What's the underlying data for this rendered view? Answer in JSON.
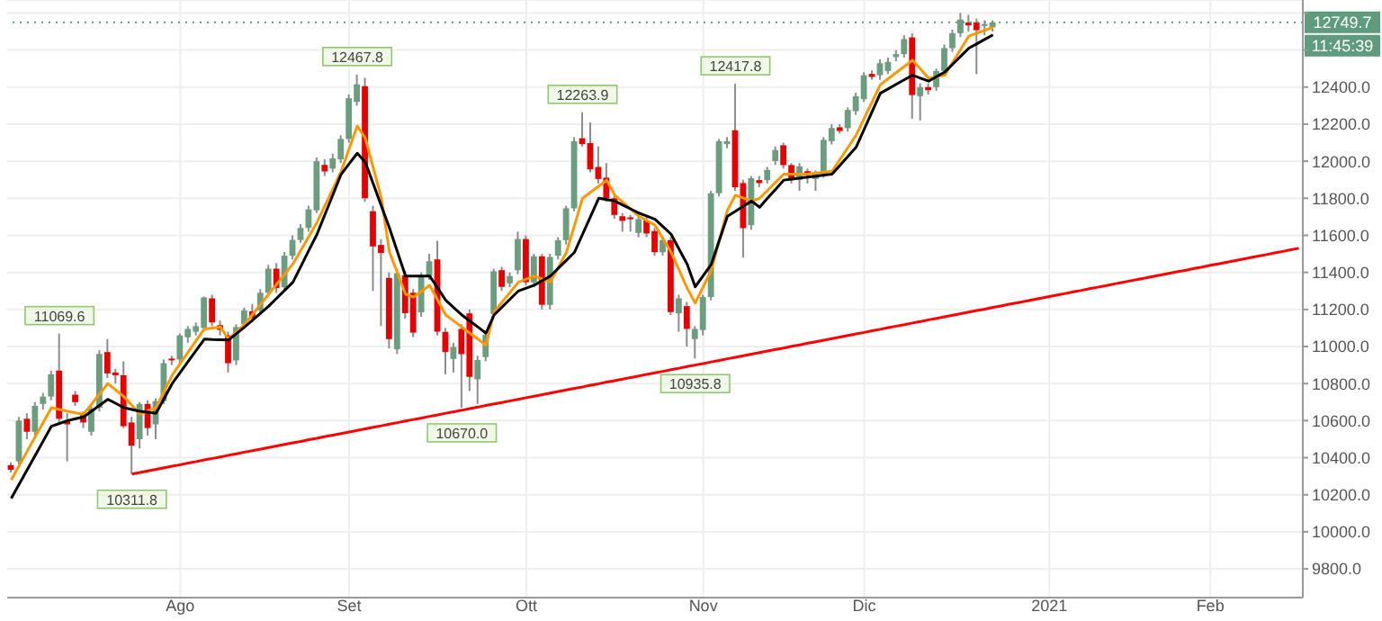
{
  "chart_data": {
    "type": "candlestick",
    "categories": [
      null,
      null,
      null,
      null,
      null,
      null,
      null,
      null,
      null,
      null,
      null,
      null,
      null,
      null,
      null,
      null,
      null,
      null,
      null,
      null,
      null,
      "Ago",
      null,
      null,
      null,
      null,
      null,
      null,
      null,
      null,
      null,
      null,
      null,
      null,
      null,
      null,
      null,
      null,
      null,
      null,
      null,
      null,
      "Set",
      null,
      null,
      null,
      null,
      null,
      null,
      null,
      null,
      null,
      null,
      null,
      null,
      null,
      null,
      null,
      null,
      null,
      null,
      null,
      null,
      null,
      "Ott",
      null,
      null,
      null,
      null,
      null,
      null,
      null,
      null,
      null,
      null,
      null,
      null,
      null,
      null,
      null,
      null,
      null,
      null,
      null,
      null,
      null,
      "Nov",
      null,
      null,
      null,
      null,
      null,
      null,
      null,
      null,
      null,
      null,
      null,
      null,
      null,
      null,
      null,
      null,
      null,
      null,
      null,
      "Dic",
      null,
      null,
      null,
      null,
      null,
      null,
      null,
      null,
      null,
      null,
      null,
      null,
      null,
      null,
      null,
      null,
      null,
      null,
      null,
      null,
      null,
      null,
      "2021",
      null,
      null,
      null,
      null,
      null,
      null,
      null,
      null,
      null,
      null,
      null,
      null,
      null,
      null,
      null,
      null,
      null,
      null,
      null,
      "Feb",
      null,
      null,
      null,
      null,
      null,
      null,
      null,
      null,
      null,
      null,
      null
    ],
    "ylim": [
      9645,
      12870
    ],
    "yticks": [
      {
        "value": 9800,
        "label": "9800.0"
      },
      {
        "value": 10000,
        "label": "10000.0"
      },
      {
        "value": 10200,
        "label": "10200.0"
      },
      {
        "value": 10400,
        "label": "10400.0"
      },
      {
        "value": 10600,
        "label": "10600.0"
      },
      {
        "value": 10800,
        "label": "10800.0"
      },
      {
        "value": 11000,
        "label": "11000.0"
      },
      {
        "value": 11200,
        "label": "11200.0"
      },
      {
        "value": 11400,
        "label": "11400.0"
      },
      {
        "value": 11600,
        "label": "11600.0"
      },
      {
        "value": 11800,
        "label": "11800.0"
      },
      {
        "value": 12000,
        "label": "12000.0"
      },
      {
        "value": 12200,
        "label": "12200.0"
      },
      {
        "value": 12400,
        "label": "12400.0"
      },
      {
        "value": 12600,
        "label": null
      },
      {
        "value": 12800,
        "label": null
      }
    ],
    "grid": true,
    "series": [
      {
        "type": "line",
        "color": "#ff9800",
        "values": [
          10280,
          10358,
          10436,
          10514,
          10592,
          10670,
          10660,
          10650,
          10642,
          10635,
          10690,
          10745,
          10800,
          10765,
          10730,
          10683,
          10635,
          10653,
          10670,
          10758,
          10845,
          10908,
          10970,
          11033,
          11095,
          11100,
          11105,
          11040,
          11080,
          11120,
          11174,
          11229,
          11283,
          11337,
          11391,
          11445,
          11520,
          11595,
          11670,
          11762,
          11853,
          11945,
          12068,
          12190,
          12125,
          11963,
          11800,
          11510,
          11397,
          11283,
          11267,
          11299,
          11330,
          11250,
          11170,
          11138,
          11105,
          11072,
          11040,
          11007,
          11186,
          11240,
          11293,
          11347,
          11364,
          11380,
          11364,
          11347,
          11428,
          11509,
          11655,
          11800,
          11833,
          11865,
          11898,
          11817,
          11779,
          11741,
          11703,
          11679,
          11655,
          11582,
          11509,
          11412,
          11315,
          11234,
          11323,
          11412,
          11574,
          11736,
          11817,
          11801,
          11785,
          11800,
          11843,
          11887,
          11930,
          11930,
          11930,
          11930,
          11935,
          11941,
          11946,
          12011,
          12076,
          12141,
          12232,
          12322,
          12413,
          12446,
          12479,
          12512,
          12545,
          12497,
          12448,
          12456,
          12464,
          12534,
          12605,
          12675,
          12691,
          12707,
          12723,
          null,
          null,
          null,
          null,
          null,
          null,
          null,
          null,
          null,
          null,
          null,
          null,
          null,
          null,
          null,
          null,
          null,
          null,
          null,
          null,
          null,
          null,
          null,
          null,
          null,
          null,
          null,
          null,
          null,
          null,
          null,
          null,
          null,
          null,
          null,
          null,
          null,
          null
        ]
      },
      {
        "type": "line",
        "color": "#000000",
        "values": [
          10180,
          10258,
          10336,
          10414,
          10492,
          10570,
          10585,
          10600,
          10610,
          10620,
          10652,
          10683,
          10715,
          10693,
          10670,
          10660,
          10650,
          10645,
          10640,
          10720,
          10800,
          10860,
          10920,
          10980,
          11040,
          11038,
          11037,
          11035,
          11070,
          11105,
          11143,
          11180,
          11218,
          11261,
          11304,
          11347,
          11433,
          11520,
          11606,
          11714,
          11822,
          11930,
          11987,
          12043,
          11995,
          11877,
          11758,
          11640,
          11510,
          11380,
          11380,
          11380,
          11380,
          11315,
          11250,
          11210,
          11170,
          11137,
          11105,
          11072,
          11170,
          11213,
          11256,
          11299,
          11315,
          11331,
          11356,
          11380,
          11423,
          11466,
          11509,
          11606,
          11703,
          11800,
          11793,
          11785,
          11763,
          11742,
          11720,
          11704,
          11687,
          11647,
          11606,
          11525,
          11444,
          11322,
          11383,
          11444,
          11574,
          11703,
          11730,
          11758,
          11785,
          11752,
          11801,
          11849,
          11898,
          11903,
          11909,
          11914,
          11919,
          11925,
          11930,
          11979,
          12027,
          12076,
          12173,
          12270,
          12367,
          12391,
          12416,
          12440,
          12464,
          12448,
          12432,
          12457,
          12481,
          12524,
          12567,
          12610,
          12634,
          12658,
          12682,
          null,
          null,
          null,
          null,
          null,
          null,
          null,
          null,
          null,
          null,
          null,
          null,
          null,
          null,
          null,
          null,
          null,
          null,
          null,
          null,
          null,
          null,
          null,
          null,
          null,
          null,
          null,
          null,
          null,
          null,
          null,
          null,
          null,
          null,
          null,
          null,
          null,
          null
        ]
      },
      {
        "type": "line",
        "color": "#ff0000",
        "values": [
          null,
          null,
          null,
          null,
          null,
          null,
          null,
          null,
          null,
          null,
          null,
          null,
          null,
          null,
          null,
          10312,
          10320,
          10329,
          10337,
          10346,
          10354,
          10362,
          10371,
          10379,
          10388,
          10396,
          10404,
          10413,
          10421,
          10430,
          10438,
          10446,
          10455,
          10463,
          10472,
          10480,
          10488,
          10497,
          10505,
          10514,
          10522,
          10530,
          10539,
          10547,
          10556,
          10564,
          10572,
          10581,
          10589,
          10598,
          10606,
          10614,
          10623,
          10631,
          10640,
          10648,
          10656,
          10665,
          10673,
          10682,
          10690,
          10698,
          10707,
          10715,
          10724,
          10732,
          10740,
          10749,
          10757,
          10766,
          10774,
          10782,
          10791,
          10799,
          10808,
          10816,
          10824,
          10833,
          10841,
          10850,
          10858,
          10866,
          10875,
          10883,
          10892,
          10900,
          10908,
          10917,
          10925,
          10934,
          10942,
          10950,
          10959,
          10967,
          10976,
          10984,
          10992,
          11001,
          11009,
          11018,
          11026,
          11034,
          11043,
          11051,
          11060,
          11068,
          11076,
          11085,
          11093,
          11102,
          11110,
          11118,
          11127,
          11135,
          11144,
          11152,
          11160,
          11169,
          11177,
          11186,
          11194,
          11202,
          11211,
          11219,
          11228,
          11236,
          11244,
          11253,
          11261,
          11270,
          11278,
          11286,
          11295,
          11303,
          11312,
          11320,
          11328,
          11337,
          11345,
          11354,
          11362,
          11370,
          11379,
          11387,
          11396,
          11404,
          11412,
          11421,
          11429,
          11438,
          11446,
          11454,
          11463,
          11471,
          11480,
          11488,
          11496,
          11505,
          11513,
          11522,
          11530
        ]
      },
      {
        "type": "candlestick",
        "color": "#6b9e80",
        "ohlc": [
          null,
          [
            10380,
            10620,
            10360,
            10600
          ],
          null,
          [
            10540,
            10700,
            10520,
            10680
          ],
          [
            10690,
            10750,
            10660,
            10730
          ],
          [
            10730,
            10870,
            10710,
            10850
          ],
          null,
          null,
          null,
          null,
          [
            10540,
            10680,
            10520,
            10665
          ],
          [
            10670,
            10980,
            10650,
            10960
          ],
          null,
          null,
          null,
          null,
          [
            10500,
            10700,
            10450,
            10690
          ],
          null,
          [
            10580,
            10720,
            10500,
            10705
          ],
          [
            10705,
            10930,
            10690,
            10910
          ],
          null,
          [
            10930,
            11070,
            10910,
            11060
          ],
          [
            11050,
            11110,
            11020,
            11095
          ],
          [
            11080,
            11130,
            11060,
            11110
          ],
          [
            11100,
            11270,
            11080,
            11265
          ],
          null,
          null,
          null,
          [
            10925,
            11120,
            10900,
            11105
          ],
          [
            11120,
            11210,
            11100,
            11195
          ],
          null,
          [
            11195,
            11310,
            11170,
            11290
          ],
          [
            11290,
            11440,
            11270,
            11420
          ],
          null,
          [
            11320,
            11510,
            11300,
            11490
          ],
          [
            11490,
            11600,
            11470,
            11575
          ],
          [
            11575,
            11660,
            11560,
            11640
          ],
          [
            11640,
            11760,
            11620,
            11740
          ],
          [
            11735,
            12020,
            11720,
            12000
          ],
          null,
          [
            11960,
            12040,
            11940,
            12015
          ],
          [
            12010,
            12140,
            11990,
            12120
          ],
          [
            12120,
            12360,
            12100,
            12340
          ],
          [
            12320,
            12467.8,
            12300,
            12415
          ],
          null,
          null,
          null,
          null,
          [
            10985,
            11420,
            10960,
            11395
          ],
          null,
          null,
          [
            11185,
            11400,
            11160,
            11380
          ],
          [
            11380,
            11500,
            11360,
            11460
          ],
          null,
          null,
          [
            10933,
            11020,
            10860,
            10998
          ],
          null,
          null,
          [
            10823,
            10950,
            10690,
            10927
          ],
          [
            10943,
            11080,
            10920,
            11063
          ],
          [
            11176,
            11420,
            11160,
            11406
          ],
          null,
          [
            11341,
            11400,
            11320,
            11380
          ],
          [
            11412,
            11620,
            11390,
            11580
          ],
          null,
          [
            11347,
            11500,
            11320,
            11487
          ],
          null,
          [
            11225,
            11500,
            11200,
            11483
          ],
          [
            11490,
            11590,
            11470,
            11574
          ],
          [
            11574,
            11760,
            11550,
            11746
          ],
          [
            11746,
            12130,
            11730,
            12108
          ],
          null,
          null,
          null,
          null,
          null,
          null,
          null,
          [
            11613,
            11700,
            11590,
            11687
          ],
          null,
          null,
          [
            11509,
            11590,
            11490,
            11574
          ],
          null,
          [
            11179,
            11280,
            11080,
            11260
          ],
          null,
          [
            11040,
            11110,
            10935.8,
            11095
          ],
          [
            11089,
            11280,
            11060,
            11267
          ],
          [
            11267,
            11840,
            11250,
            11827
          ],
          [
            11827,
            12120,
            11810,
            12108
          ],
          [
            12092,
            12130,
            12070,
            12108
          ],
          null,
          null,
          [
            11655,
            11920,
            11630,
            11908
          ],
          null,
          [
            11898,
            11970,
            11880,
            11953
          ],
          [
            12001,
            12080,
            11980,
            12060
          ],
          null,
          null,
          [
            11898,
            11990,
            11840,
            11972
          ],
          null,
          [
            11904,
            11950,
            11840,
            11937
          ],
          [
            11930,
            12130,
            11910,
            12115
          ],
          [
            12108,
            12200,
            12090,
            12179
          ],
          null,
          [
            12179,
            12290,
            12160,
            12277
          ],
          [
            12270,
            12370,
            12250,
            12351
          ],
          [
            12335,
            12480,
            12320,
            12464
          ],
          null,
          [
            12464,
            12550,
            12440,
            12529
          ],
          [
            12487,
            12560,
            12470,
            12536
          ],
          [
            12562,
            12600,
            12540,
            12578
          ],
          [
            12578,
            12680,
            12560,
            12659
          ],
          null,
          [
            12351,
            12420,
            12220,
            12400
          ],
          null,
          [
            12400,
            12500,
            12380,
            12487
          ],
          [
            12487,
            12630,
            12470,
            12610
          ],
          [
            12610,
            12710,
            12590,
            12691
          ],
          [
            12691,
            12800,
            12670,
            12765
          ],
          null,
          null,
          [
            12730,
            12760,
            12680,
            12740
          ],
          [
            12723,
            12760,
            12700,
            12749.7
          ],
          null,
          null,
          null,
          null,
          null,
          null,
          null,
          null,
          null,
          null,
          null,
          null,
          null,
          null,
          null,
          null,
          null,
          null,
          null,
          null,
          null,
          null,
          null,
          null,
          null,
          null,
          null,
          null,
          null,
          null,
          null,
          null,
          null,
          null,
          null,
          null,
          null,
          null
        ]
      },
      {
        "type": "candlestick",
        "color": "#e60000",
        "ohlc": [
          [
            10360,
            10375,
            10320,
            10335
          ],
          null,
          [
            10610,
            10640,
            10500,
            10540
          ],
          null,
          null,
          null,
          [
            10870,
            11069.6,
            10590,
            10610
          ],
          [
            10600,
            10640,
            10380,
            10580
          ],
          [
            10740,
            10760,
            10680,
            10700
          ],
          [
            10630,
            10650,
            10560,
            10590
          ],
          null,
          null,
          [
            10970,
            11040,
            10830,
            10855
          ],
          [
            10860,
            10880,
            10800,
            10845
          ],
          [
            10845,
            10920,
            10560,
            10570
          ],
          [
            10590,
            10620,
            10311.8,
            10465
          ],
          null,
          [
            10690,
            10710,
            10520,
            10560
          ],
          null,
          null,
          [
            10935,
            10950,
            10900,
            10925
          ],
          null,
          null,
          null,
          null,
          [
            11260,
            11280,
            11110,
            11130
          ],
          [
            11115,
            11140,
            11060,
            11090
          ],
          [
            11060,
            11080,
            10860,
            10910
          ],
          null,
          null,
          [
            11190,
            11230,
            11130,
            11155
          ],
          null,
          null,
          [
            11420,
            11450,
            11290,
            11315
          ],
          null,
          null,
          null,
          null,
          null,
          [
            11980,
            12010,
            11920,
            11945
          ],
          null,
          null,
          null,
          null,
          [
            12405,
            12450,
            11780,
            11800
          ],
          [
            11730,
            11760,
            11300,
            11540
          ],
          [
            11548,
            11580,
            11110,
            11505
          ],
          [
            11370,
            11400,
            10990,
            11040
          ],
          null,
          [
            11385,
            11410,
            11150,
            11180
          ],
          [
            11290,
            11310,
            11050,
            11075
          ],
          null,
          null,
          [
            11470,
            11570,
            11060,
            11080
          ],
          [
            11079,
            11100,
            10850,
            10970
          ],
          null,
          [
            11095,
            11120,
            10670,
            10959
          ],
          [
            11179,
            11200,
            10760,
            10836
          ],
          null,
          null,
          null,
          [
            11412,
            11430,
            11300,
            11322
          ],
          null,
          null,
          [
            11580,
            11600,
            11330,
            11347
          ],
          null,
          [
            11487,
            11500,
            11200,
            11225
          ],
          null,
          null,
          null,
          null,
          [
            12124,
            12263.9,
            12080,
            12092
          ],
          [
            12098,
            12210,
            11940,
            11956
          ],
          [
            11969,
            12080,
            11880,
            11904
          ],
          [
            11911,
            11990,
            11780,
            11800
          ],
          [
            11800,
            11830,
            11690,
            11710
          ],
          [
            11703,
            11720,
            11620,
            11678
          ],
          [
            11697,
            11710,
            11620,
            11687
          ],
          null,
          [
            11680,
            11700,
            11590,
            11610
          ],
          [
            11623,
            11640,
            11490,
            11509
          ],
          null,
          [
            11574,
            11590,
            11170,
            11186
          ],
          null,
          [
            11218,
            11240,
            11000,
            11095
          ],
          null,
          null,
          null,
          null,
          null,
          [
            12167,
            12417.8,
            11840,
            11859
          ],
          [
            11882,
            11900,
            11480,
            11639
          ],
          null,
          [
            11898,
            11920,
            11860,
            11882
          ],
          null,
          null,
          [
            12086,
            12100,
            11960,
            11979
          ],
          [
            11979,
            11990,
            11880,
            11898
          ],
          null,
          [
            11946,
            11960,
            11880,
            11930
          ],
          null,
          null,
          null,
          [
            12183,
            12200,
            12150,
            12163
          ],
          null,
          null,
          null,
          [
            12471,
            12490,
            12440,
            12455
          ],
          null,
          null,
          null,
          null,
          [
            12668,
            12690,
            12230,
            12357
          ],
          null,
          [
            12400,
            12420,
            12360,
            12383
          ],
          null,
          null,
          null,
          null,
          [
            12749,
            12790,
            12700,
            12733
          ],
          [
            12749,
            12770,
            12470,
            12707
          ],
          null,
          null,
          null,
          null,
          null,
          null,
          null,
          null,
          null,
          null,
          null,
          null,
          null,
          null,
          null,
          null,
          null,
          null,
          null,
          null,
          null,
          null,
          null,
          null,
          null,
          null,
          null,
          null,
          null,
          null,
          null,
          null,
          null,
          null,
          null,
          null,
          null,
          null,
          null,
          null
        ]
      }
    ],
    "ref_lines": [
      {
        "axis": "y",
        "value": 12749.7,
        "label": "12749.7",
        "color": "#5e9c7d",
        "line_style": "dotted"
      }
    ],
    "annotations": [
      {
        "text": "11069.6",
        "y": 11069.6
      },
      {
        "text": "10311.8",
        "y": 10311.8
      },
      {
        "text": "12467.8",
        "y": 12467.8
      },
      {
        "text": "10670.0",
        "y": 10670
      },
      {
        "text": "12263.9",
        "y": 12263.9
      },
      {
        "text": "10935.8",
        "y": 10935.8
      },
      {
        "text": "12417.8",
        "y": 12417.8
      },
      "11:45:39"
    ]
  }
}
